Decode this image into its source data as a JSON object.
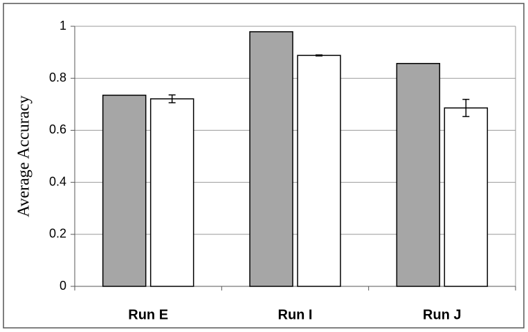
{
  "chart_data": {
    "type": "bar",
    "y_label": "Average Accuracy",
    "categories": [
      "Run E",
      "Run I",
      "Run J"
    ],
    "series": [
      {
        "color": "#a6a6a6",
        "values": [
          0.735,
          0.979,
          0.857
        ]
      },
      {
        "color": "#ffffff",
        "values": [
          0.721,
          0.888,
          0.686
        ],
        "errors": [
          0.015,
          0.002,
          0.033
        ]
      }
    ],
    "ylim": [
      0,
      1
    ],
    "yticks": [
      0,
      0.2,
      0.4,
      0.6,
      0.8,
      1
    ],
    "grid": true
  }
}
